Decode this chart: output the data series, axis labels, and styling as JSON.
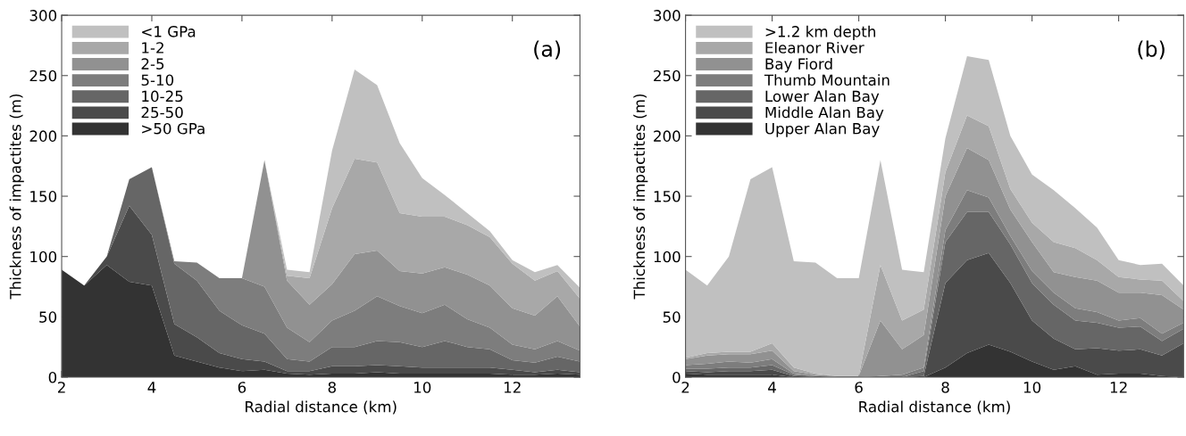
{
  "chart_data": [
    {
      "type": "area",
      "stacked": true,
      "xlabel": "Radial distance (km)",
      "ylabel": "Thickness of impactites (m)",
      "annotations": [
        "(a)"
      ],
      "x": [
        2,
        2.5,
        3,
        3.5,
        4,
        4.5,
        5,
        5.5,
        6,
        6.5,
        7,
        7.5,
        8,
        8.5,
        9,
        9.5,
        10,
        10.5,
        11,
        11.5,
        12,
        12.5,
        13,
        13.5
      ],
      "xlim": [
        2,
        13.5
      ],
      "xticks": [
        2,
        4,
        6,
        8,
        10,
        12
      ],
      "ylim": [
        0,
        300
      ],
      "yticks": [
        0,
        50,
        100,
        150,
        200,
        250,
        300
      ],
      "grid": false,
      "legend": "top left",
      "series": [
        {
          "name": ">50 GPa",
          "color": "#333333",
          "values": [
            89,
            76,
            93,
            79,
            76,
            18,
            13,
            8,
            5,
            6,
            3,
            2,
            3,
            3,
            4,
            3,
            3,
            3,
            3,
            3,
            2,
            2,
            3,
            2
          ]
        },
        {
          "name": "25-50",
          "color": "#4a4a4a",
          "values": [
            0,
            0,
            7,
            63,
            42,
            26,
            20,
            12,
            10,
            7,
            2,
            3,
            6,
            6,
            6,
            6,
            5,
            5,
            5,
            5,
            4,
            2,
            3,
            2
          ]
        },
        {
          "name": "10-25",
          "color": "#666666",
          "values": [
            0,
            0,
            0,
            22,
            56,
            50,
            47,
            35,
            28,
            23,
            10,
            8,
            16,
            16,
            20,
            20,
            17,
            22,
            17,
            15,
            8,
            8,
            11,
            9
          ]
        },
        {
          "name": "5-10",
          "color": "#7d7d7d",
          "values": [
            0,
            0,
            0,
            0,
            0,
            2,
            15,
            27,
            39,
            39,
            26,
            16,
            22,
            30,
            37,
            30,
            28,
            30,
            23,
            18,
            13,
            11,
            13,
            9
          ]
        },
        {
          "name": "2-5",
          "color": "#919191",
          "values": [
            0,
            0,
            0,
            0,
            0,
            0,
            0,
            0,
            0,
            105,
            39,
            31,
            30,
            47,
            38,
            29,
            33,
            31,
            37,
            35,
            30,
            28,
            37,
            20
          ]
        },
        {
          "name": "1-2",
          "color": "#a8a8a8",
          "values": [
            0,
            0,
            0,
            0,
            0,
            0,
            0,
            0,
            0,
            0,
            4,
            22,
            63,
            79,
            73,
            48,
            47,
            42,
            41,
            40,
            37,
            29,
            21,
            23
          ]
        },
        {
          "name": "<1 GPa",
          "color": "#c0c0c0",
          "values": [
            0,
            0,
            0,
            0,
            0,
            0,
            0,
            0,
            0,
            0,
            5,
            5,
            48,
            74,
            64,
            58,
            32,
            18,
            10,
            5,
            3,
            7,
            5,
            9
          ]
        }
      ]
    },
    {
      "type": "area",
      "stacked": true,
      "xlabel": "Radial distance (km)",
      "ylabel": "Thickness of impactites (m)",
      "annotations": [
        "(b)"
      ],
      "x": [
        2,
        2.5,
        3,
        3.5,
        4,
        4.5,
        5,
        5.5,
        6,
        6.5,
        7,
        7.5,
        8,
        8.5,
        9,
        9.5,
        10,
        10.5,
        11,
        11.5,
        12,
        12.5,
        13,
        13.5
      ],
      "xlim": [
        2,
        13.5
      ],
      "xticks": [
        2,
        4,
        6,
        8,
        10,
        12
      ],
      "ylim": [
        0,
        300
      ],
      "yticks": [
        0,
        50,
        100,
        150,
        200,
        250,
        300
      ],
      "grid": false,
      "legend": "top left",
      "series": [
        {
          "name": "Upper Alan Bay",
          "color": "#333333",
          "values": [
            3,
            2,
            2,
            2,
            2,
            0,
            0,
            0,
            0,
            0,
            0,
            0,
            8,
            20,
            27,
            21,
            13,
            6,
            9,
            2,
            3,
            3,
            1,
            0
          ]
        },
        {
          "name": "Middle Alan Bay",
          "color": "#4a4a4a",
          "values": [
            2,
            2,
            3,
            3,
            4,
            1,
            0,
            0,
            0,
            0,
            0,
            1,
            70,
            77,
            76,
            57,
            34,
            26,
            14,
            22,
            19,
            20,
            17,
            28
          ]
        },
        {
          "name": "Lower Alan Bay",
          "color": "#666666",
          "values": [
            2,
            3,
            3,
            3,
            4,
            1,
            1,
            0,
            0,
            0,
            0,
            4,
            34,
            40,
            34,
            32,
            31,
            28,
            24,
            21,
            19,
            19,
            12,
            12
          ]
        },
        {
          "name": "Thumb Mountain",
          "color": "#7d7d7d",
          "values": [
            3,
            4,
            5,
            4,
            5,
            1,
            0,
            0,
            0,
            1,
            2,
            3,
            10,
            18,
            12,
            7,
            10,
            10,
            10,
            9,
            6,
            7,
            6,
            5
          ]
        },
        {
          "name": "Bay Fiord",
          "color": "#919191",
          "values": [
            5,
            7,
            6,
            7,
            7,
            2,
            1,
            1,
            1,
            46,
            21,
            27,
            28,
            35,
            31,
            22,
            24,
            17,
            26,
            26,
            23,
            21,
            32,
            11
          ]
        },
        {
          "name": "Eleanor River",
          "color": "#a8a8a8",
          "values": [
            1,
            2,
            2,
            2,
            6,
            3,
            1,
            0,
            0,
            46,
            24,
            21,
            20,
            27,
            28,
            17,
            16,
            25,
            24,
            17,
            13,
            11,
            12,
            7
          ]
        },
        {
          "name": ">1.2 km depth",
          "color": "#c0c0c0",
          "values": [
            73,
            56,
            79,
            143,
            146,
            88,
            92,
            81,
            81,
            87,
            42,
            31,
            28,
            49,
            55,
            44,
            40,
            43,
            33,
            27,
            14,
            12,
            14,
            13
          ]
        }
      ]
    }
  ]
}
